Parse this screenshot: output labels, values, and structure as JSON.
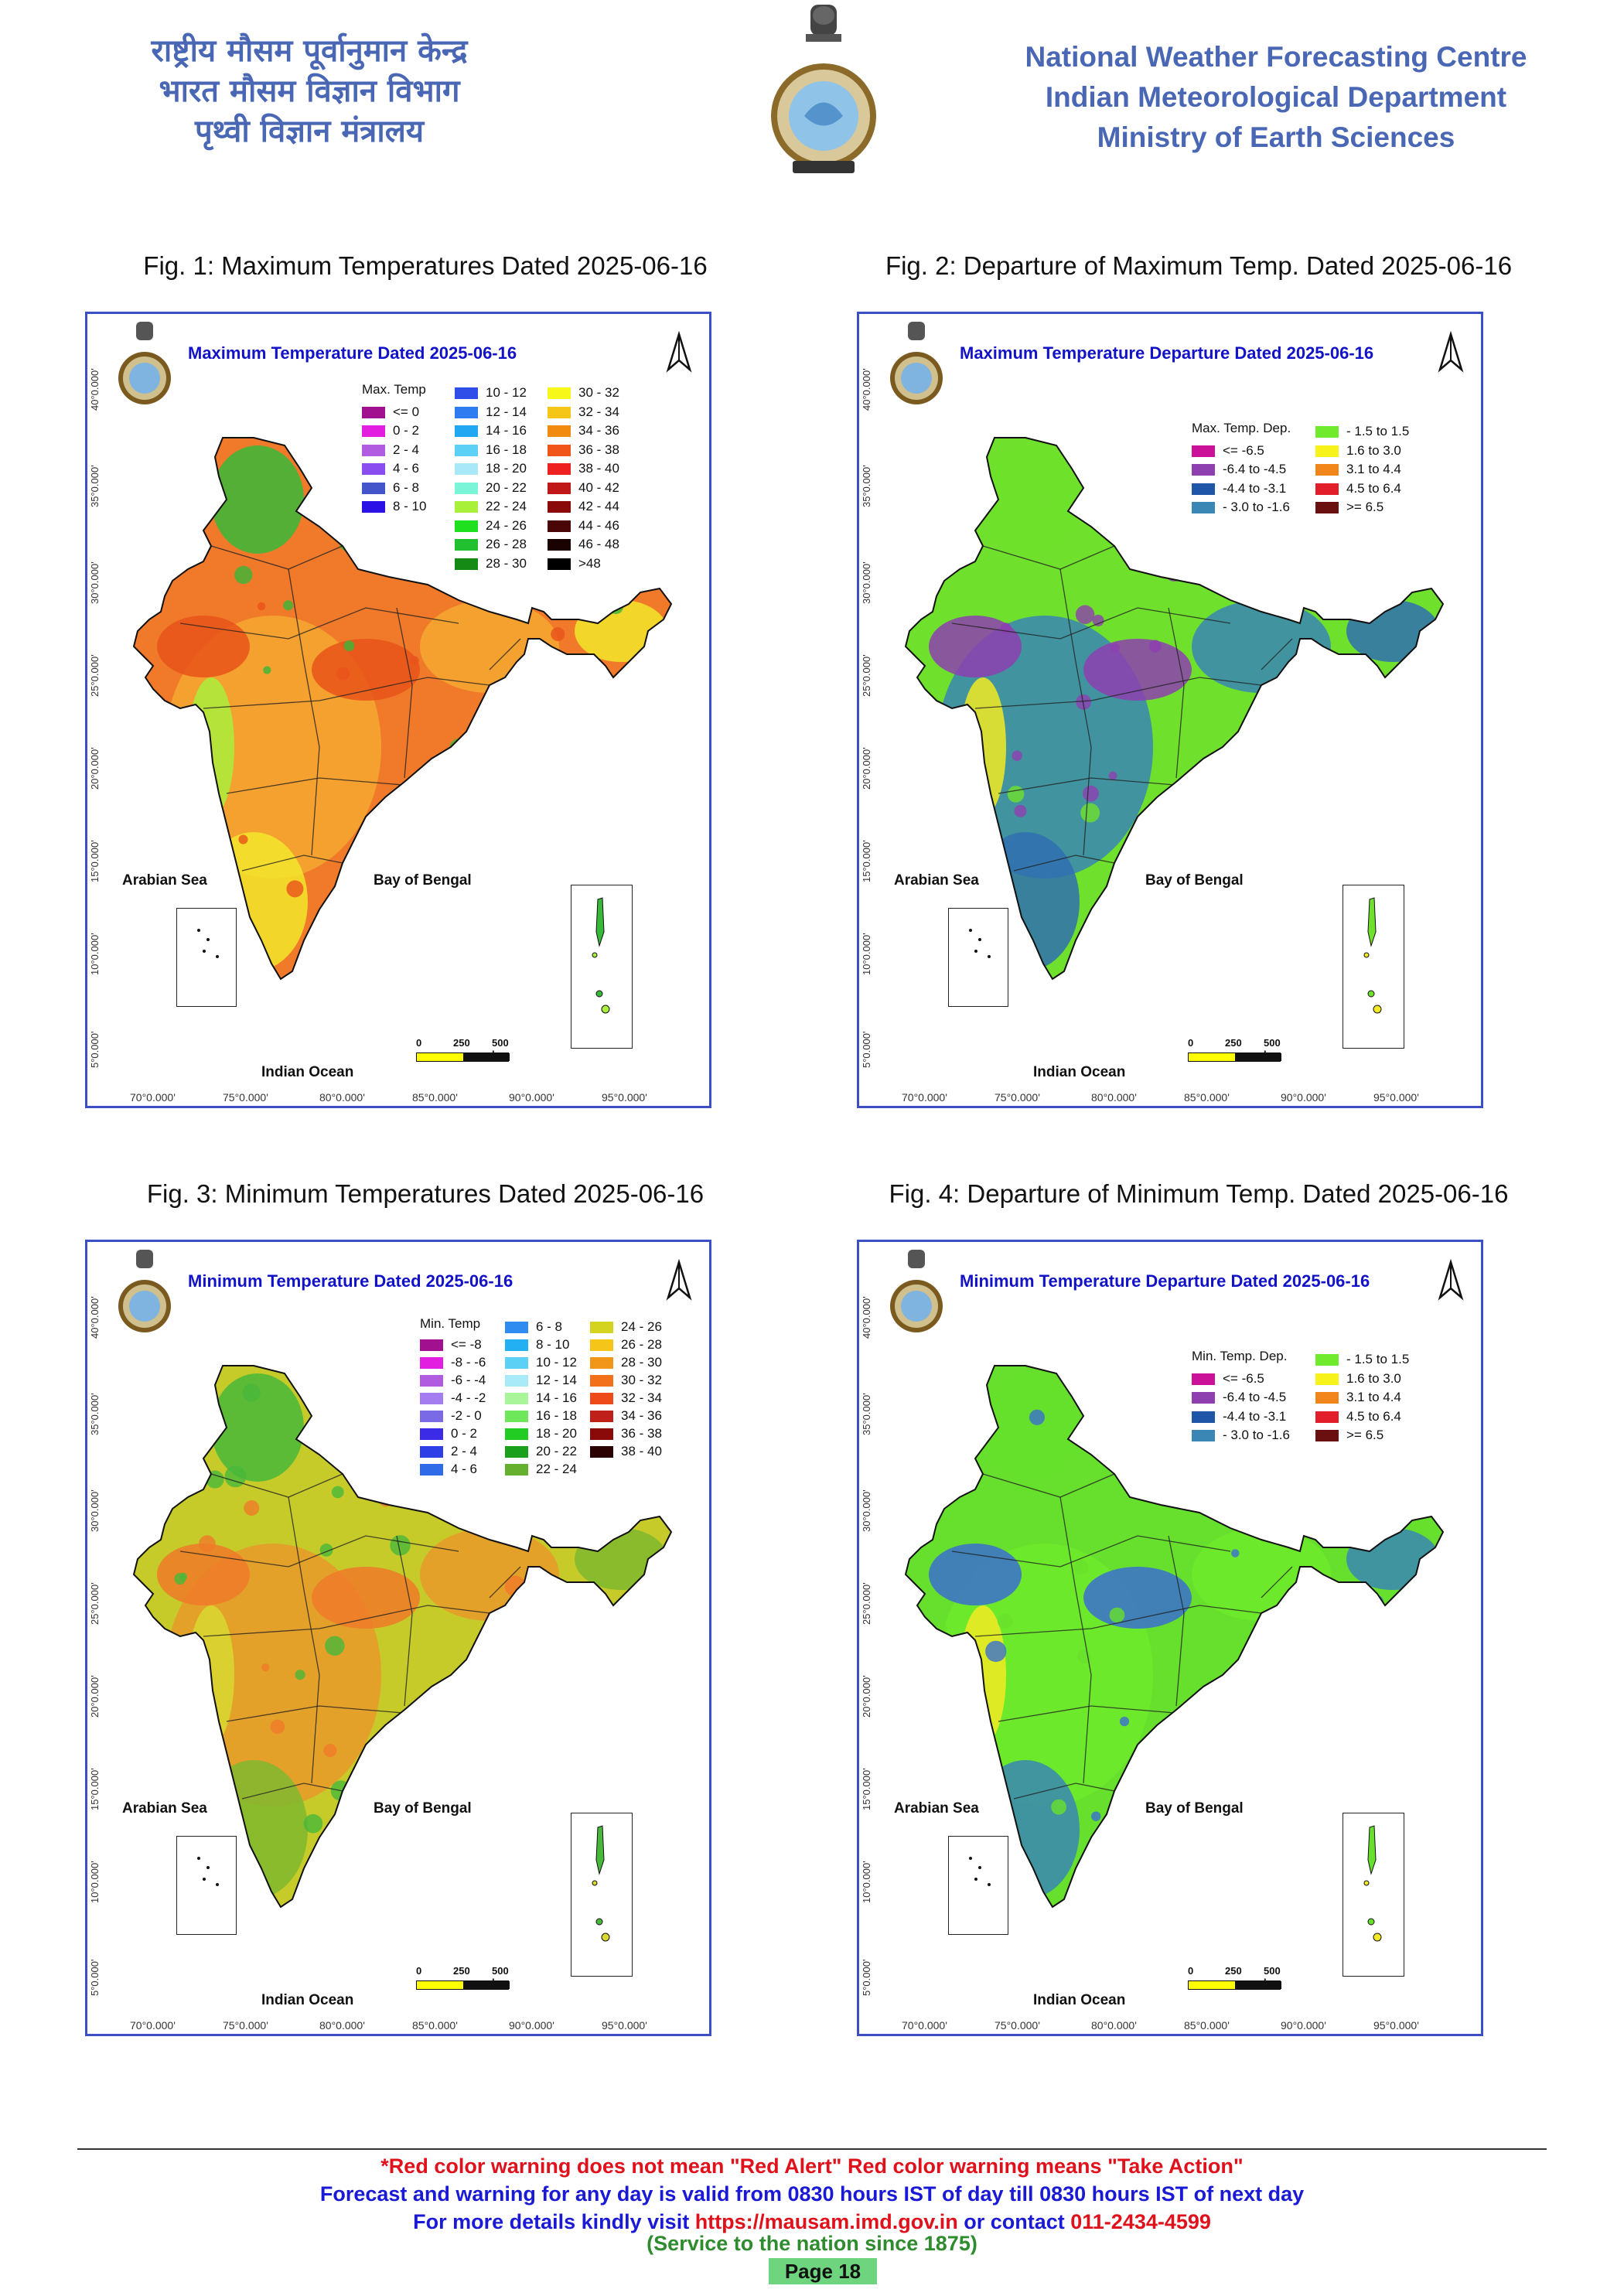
{
  "header": {
    "hindi_lines": [
      "राष्ट्रीय मौसम पूर्वानुमान केन्द्र",
      "भारत मौसम विज्ञान विभाग",
      "पृथ्वी विज्ञान मंत्रालय"
    ],
    "english_lines": [
      "National Weather Forecasting Centre",
      "Indian Meteorological Department",
      "Ministry of Earth Sciences"
    ]
  },
  "common": {
    "lat_labels": [
      "40°0.000'",
      "35°0.000'",
      "30°0.000'",
      "25°0.000'",
      "20°0.000'",
      "15°0.000'",
      "10°0.000'",
      "5°0.000'"
    ],
    "lon_labels": [
      "70°0.000'",
      "75°0.000'",
      "80°0.000'",
      "85°0.000'",
      "90°0.000'",
      "95°0.000'"
    ],
    "sea_labels": [
      "Arabian Sea",
      "Bay of Bengal",
      "Indian Ocean"
    ],
    "scale_labels": [
      "0",
      "250",
      "500 km"
    ]
  },
  "figures": [
    {
      "caption": "Fig. 1: Maximum Temperatures Dated 2025-06-16",
      "map_title": "Maximum Temperature Dated 2025-06-16",
      "legend_title": "Max. Temp",
      "legend": [
        {
          "label": "<= 0",
          "color": "#a0108f"
        },
        {
          "label": "0 - 2",
          "color": "#e21fe0"
        },
        {
          "label": "2 - 4",
          "color": "#b15ce0"
        },
        {
          "label": "4 - 6",
          "color": "#8a4ef0"
        },
        {
          "label": "6 - 8",
          "color": "#4455cc"
        },
        {
          "label": "8 - 10",
          "color": "#2a12e6"
        },
        {
          "label": "10 - 12",
          "color": "#2f4fe8"
        },
        {
          "label": "12 - 14",
          "color": "#2e7cf0"
        },
        {
          "label": "14 - 16",
          "color": "#22a8f2"
        },
        {
          "label": "16 - 18",
          "color": "#5dd1f5"
        },
        {
          "label": "18 - 20",
          "color": "#a8e8f8"
        },
        {
          "label": "20 - 22",
          "color": "#7af5d8"
        },
        {
          "label": "22 - 24",
          "color": "#a8f03a"
        },
        {
          "label": "24 - 26",
          "color": "#1fe01f"
        },
        {
          "label": "26 - 28",
          "color": "#20c030"
        },
        {
          "label": "28 - 30",
          "color": "#158a15"
        },
        {
          "label": "30 - 32",
          "color": "#f7f71a"
        },
        {
          "label": "32 - 34",
          "color": "#f5c518"
        },
        {
          "label": "34 - 36",
          "color": "#f28a10"
        },
        {
          "label": "36 - 38",
          "color": "#f2551a"
        },
        {
          "label": "38 - 40",
          "color": "#ee2020"
        },
        {
          "label": "40 - 42",
          "color": "#c01818"
        },
        {
          "label": "42 - 44",
          "color": "#8a0a0a"
        },
        {
          "label": "44 - 46",
          "color": "#4a0606"
        },
        {
          "label": "46 - 48",
          "color": "#1a0202"
        },
        {
          "label": ">48",
          "color": "#000000"
        }
      ],
      "palette": {
        "base": "#f07a2a",
        "alt": "#f5a830",
        "cool": "#f2e62a",
        "green": "#38b838",
        "light": "#a9ef3c",
        "hot": "#e9531a"
      }
    },
    {
      "caption": "Fig. 2: Departure of Maximum Temp. Dated 2025-06-16",
      "map_title": "Maximum Temperature Departure Dated 2025-06-16",
      "legend_title": "Max. Temp. Dep.",
      "legend": [
        {
          "label": "<= -6.5",
          "color": "#cc1199"
        },
        {
          "label": "-6.4 to -4.5",
          "color": "#8e3fb0"
        },
        {
          "label": "-4.4 to -3.1",
          "color": "#1f56a8"
        },
        {
          "label": "- 3.0 to -1.6",
          "color": "#3a86b4"
        },
        {
          "label": "- 1.5 to 1.5",
          "color": "#6fea2c"
        },
        {
          "label": "1.6 to  3.0",
          "color": "#f6f21a"
        },
        {
          "label": "3.1 to 4.4",
          "color": "#f2861a"
        },
        {
          "label": "4.5 to 6.4",
          "color": "#e21e2a"
        },
        {
          "label": ">= 6.5",
          "color": "#6a1010"
        }
      ],
      "palette": {
        "base": "#6fe02c",
        "alt": "#3a86b4",
        "cool": "#2f6fb0",
        "green": "#6fe02c",
        "light": "#f2ea22",
        "hot": "#8e3fb0"
      }
    },
    {
      "caption": "Fig. 3: Minimum Temperatures Dated 2025-06-16",
      "map_title": "Minimum Temperature Dated 2025-06-16",
      "legend_title": "Min. Temp",
      "legend": [
        {
          "label": "<= -8",
          "color": "#a0108f"
        },
        {
          "label": "-8 - -6",
          "color": "#e21fe0"
        },
        {
          "label": "-6 - -4",
          "color": "#b15ce0"
        },
        {
          "label": "-4 - -2",
          "color": "#a47ef0"
        },
        {
          "label": "-2 - 0",
          "color": "#7a6ae6"
        },
        {
          "label": "0 - 2",
          "color": "#3b2ae6"
        },
        {
          "label": "2 - 4",
          "color": "#2f3fe8"
        },
        {
          "label": "4 - 6",
          "color": "#2f6ae8"
        },
        {
          "label": "6 - 8",
          "color": "#2e8cf0"
        },
        {
          "label": "8 - 10",
          "color": "#22b0f2"
        },
        {
          "label": "10 - 12",
          "color": "#5dd1f5"
        },
        {
          "label": "12 - 14",
          "color": "#a8eaf8"
        },
        {
          "label": "14 - 16",
          "color": "#a8f59a"
        },
        {
          "label": "16 - 18",
          "color": "#6ee85a"
        },
        {
          "label": "18 - 20",
          "color": "#22cc22"
        },
        {
          "label": "20 - 22",
          "color": "#1aa01a"
        },
        {
          "label": "22 - 24",
          "color": "#66b030"
        },
        {
          "label": "24 - 26",
          "color": "#d4d420"
        },
        {
          "label": "26 - 28",
          "color": "#f5c51a"
        },
        {
          "label": "28 - 30",
          "color": "#f2961a"
        },
        {
          "label": "30 - 32",
          "color": "#f2701a"
        },
        {
          "label": "32 - 34",
          "color": "#ee4a1a"
        },
        {
          "label": "34 - 36",
          "color": "#c0201a"
        },
        {
          "label": "36 - 38",
          "color": "#8a0a0a"
        },
        {
          "label": "38 - 40",
          "color": "#2a0202"
        }
      ],
      "palette": {
        "base": "#c6cb2a",
        "alt": "#e89a2a",
        "cool": "#7fb82e",
        "green": "#48b83a",
        "light": "#d8d830",
        "hot": "#ef7a28"
      }
    },
    {
      "caption": "Fig. 4: Departure of Minimum Temp. Dated 2025-06-16",
      "map_title": "Minimum Temperature Departure Dated 2025-06-16",
      "legend_title": "Min. Temp. Dep.",
      "legend": [
        {
          "label": "<= -6.5",
          "color": "#cc1199"
        },
        {
          "label": "-6.4 to -4.5",
          "color": "#8e3fb0"
        },
        {
          "label": "-4.4 to -3.1",
          "color": "#1f56a8"
        },
        {
          "label": "- 3.0 to -1.6",
          "color": "#3a86b4"
        },
        {
          "label": "- 1.5 to 1.5",
          "color": "#6fea2c"
        },
        {
          "label": "1.6 to  3.0",
          "color": "#f6f21a"
        },
        {
          "label": "3.1 to 4.4",
          "color": "#f2861a"
        },
        {
          "label": "4.5 to 6.4",
          "color": "#e21e2a"
        },
        {
          "label": ">= 6.5",
          "color": "#6a1010"
        }
      ],
      "palette": {
        "base": "#66e02c",
        "alt": "#6fea2c",
        "cool": "#3a86b4",
        "green": "#66e02c",
        "light": "#f2ea22",
        "hot": "#3a6fd0"
      }
    }
  ],
  "footer": {
    "line1": "*Red color warning does not mean \"Red Alert\" Red color warning means \"Take Action\"",
    "line2": "Forecast and warning for any day is valid from 0830 hours IST of day till 0830 hours IST of next day",
    "line3_pre": "For more details kindly visit ",
    "line3_url": "https://mausam.imd.gov.in",
    "line3_mid": " or contact ",
    "line3_phone": "011-2434-4599",
    "line4": "(Service to the nation since 1875)",
    "page": "Page 18"
  }
}
